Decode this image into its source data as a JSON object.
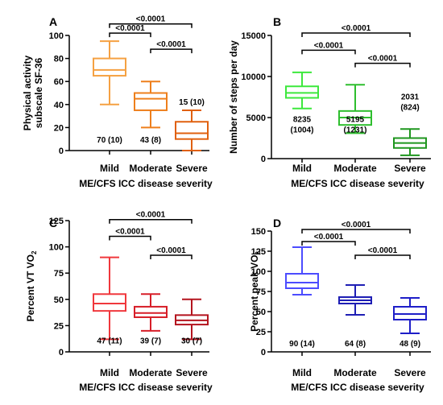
{
  "chart_data": [
    {
      "panel": "A",
      "type": "box",
      "categories": [
        "Mild",
        "Moderate",
        "Severe"
      ],
      "xlabel": "ME/CFS ICC disease severity",
      "ylabel": [
        "Physical activity",
        "subscale SF-36"
      ],
      "ylim": [
        0,
        100
      ],
      "yticks": [
        0,
        20,
        40,
        60,
        80,
        100
      ],
      "colors": [
        "#F5A142",
        "#EE7F1C",
        "#E0600F"
      ],
      "boxes": [
        {
          "min": 40,
          "q1": 65,
          "median": 70,
          "q3": 80,
          "max": 95
        },
        {
          "min": 20,
          "q1": 35,
          "median": 45,
          "q3": 50,
          "max": 60
        },
        {
          "min": 0,
          "q1": 10,
          "median": 15,
          "q3": 25,
          "max": 35
        }
      ],
      "annotations": [
        {
          "lines": [
            "70 (10)"
          ],
          "value": 7
        },
        {
          "lines": [
            "43 (8)"
          ],
          "value": 7
        },
        {
          "lines": [
            "15 (10)"
          ],
          "value": 40
        }
      ],
      "comparisons": [
        {
          "from": 0,
          "to": 2,
          "y": 110,
          "label": "<0.0001"
        },
        {
          "from": 0,
          "to": 1,
          "y": 102,
          "label": "<0.0001"
        },
        {
          "from": 1,
          "to": 2,
          "y": 88,
          "label": "<0.0001"
        }
      ]
    },
    {
      "panel": "B",
      "type": "box",
      "categories": [
        "Mild",
        "Moderate",
        "Severe"
      ],
      "xlabel": "ME/CFS ICC disease severity",
      "ylabel": [
        "Number of steps per day"
      ],
      "ylim": [
        0,
        15000
      ],
      "yticks": [
        0,
        5000,
        10000,
        15000
      ],
      "colors": [
        "#3DE83D",
        "#2EBE2E",
        "#1E961E"
      ],
      "boxes": [
        {
          "min": 6100,
          "q1": 7400,
          "median": 8000,
          "q3": 8800,
          "max": 10500
        },
        {
          "min": 3100,
          "q1": 4100,
          "median": 5000,
          "q3": 5800,
          "max": 9000
        },
        {
          "min": 400,
          "q1": 1300,
          "median": 1900,
          "q3": 2500,
          "max": 3600
        }
      ],
      "annotations": [
        {
          "lines": [
            "8235",
            "(1004)"
          ],
          "value": 3200
        },
        {
          "lines": [
            "5195",
            "(1231)"
          ],
          "value": 3200
        },
        {
          "lines": [
            "2031",
            "(824)"
          ],
          "value": 5950
        }
      ],
      "comparisons": [
        {
          "from": 0,
          "to": 2,
          "y": 15300,
          "label": "<0.0001"
        },
        {
          "from": 0,
          "to": 1,
          "y": 13200,
          "label": "<0.0001"
        },
        {
          "from": 1,
          "to": 2,
          "y": 11600,
          "label": "<0.0001"
        }
      ]
    },
    {
      "panel": "C",
      "type": "box",
      "categories": [
        "Mild",
        "Moderate",
        "Severe"
      ],
      "xlabel": "ME/CFS ICC disease severity",
      "ylabel": [
        "Percent VT VO",
        "2"
      ],
      "ylim": [
        0,
        125
      ],
      "yticks": [
        0,
        25,
        50,
        75,
        100,
        125
      ],
      "colors": [
        "#F0373C",
        "#D71E28",
        "#B4141E"
      ],
      "boxes": [
        {
          "min": 12,
          "q1": 39,
          "median": 46,
          "q3": 55,
          "max": 90
        },
        {
          "min": 20,
          "q1": 33,
          "median": 37,
          "q3": 43,
          "max": 55
        },
        {
          "min": 12,
          "q1": 26,
          "median": 30,
          "q3": 35,
          "max": 50
        }
      ],
      "annotations": [
        {
          "lines": [
            "47 (11)"
          ],
          "value": 8
        },
        {
          "lines": [
            "39 (7)"
          ],
          "value": 8
        },
        {
          "lines": [
            "30 (7)"
          ],
          "value": 8
        }
      ],
      "comparisons": [
        {
          "from": 0,
          "to": 2,
          "y": 126,
          "label": "<0.0001"
        },
        {
          "from": 0,
          "to": 1,
          "y": 110,
          "label": "<0.0001"
        },
        {
          "from": 1,
          "to": 2,
          "y": 92,
          "label": "<0.0001"
        }
      ]
    },
    {
      "panel": "D",
      "type": "box",
      "categories": [
        "Mild",
        "Moderate",
        "Severe"
      ],
      "xlabel": "ME/CFS ICC disease severity",
      "ylabel": [
        "Percent peak VO",
        "2"
      ],
      "ylim": [
        0,
        150
      ],
      "yticks": [
        0,
        25,
        50,
        75,
        100,
        125,
        150
      ],
      "colors": [
        "#4C4CFF",
        "#1E1EB4",
        "#1E1EC8"
      ],
      "boxes": [
        {
          "min": 71,
          "q1": 79,
          "median": 86,
          "q3": 97,
          "max": 130
        },
        {
          "min": 46,
          "q1": 60,
          "median": 64,
          "q3": 68,
          "max": 83
        },
        {
          "min": 23,
          "q1": 40,
          "median": 47,
          "q3": 56,
          "max": 67
        }
      ],
      "annotations": [
        {
          "lines": [
            "90 (14)"
          ],
          "value": 7
        },
        {
          "lines": [
            "64 (8)"
          ],
          "value": 7
        },
        {
          "lines": [
            "48 (9)"
          ],
          "value": 7
        }
      ],
      "comparisons": [
        {
          "from": 0,
          "to": 2,
          "y": 152,
          "label": "<0.0001"
        },
        {
          "from": 0,
          "to": 1,
          "y": 137,
          "label": "<0.0001"
        },
        {
          "from": 1,
          "to": 2,
          "y": 120,
          "label": "<0.0001"
        }
      ]
    }
  ]
}
